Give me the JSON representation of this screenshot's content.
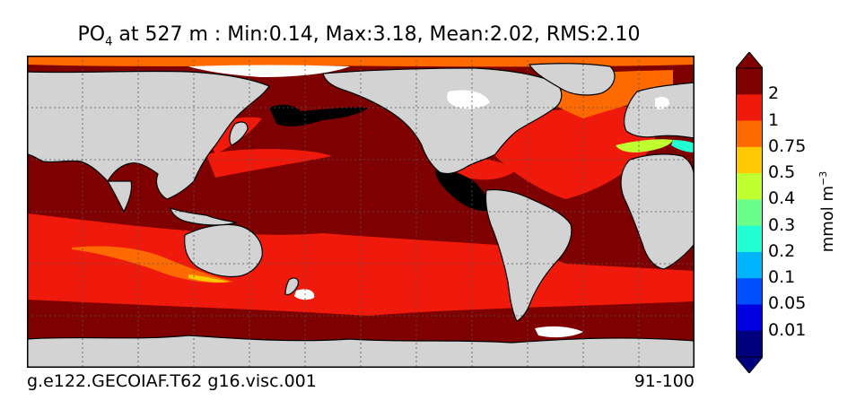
{
  "title": {
    "variable": "PO",
    "variable_subscript": "4",
    "rest": " at 527 m : Min:0.14, Max:3.18, Mean:2.02, RMS:2.10"
  },
  "footer": {
    "case_name": "g.e122.GECOIAF.T62 g16.visc.001",
    "years": "91-100"
  },
  "colorbar": {
    "unit_base": "mmol m",
    "unit_exponent": "−3",
    "ticks": [
      "2",
      "1",
      "0.75",
      "0.5",
      "0.4",
      "0.3",
      "0.2",
      "0.1",
      "0.05",
      "0.01"
    ],
    "colors": [
      "#7f0000",
      "#f01a0c",
      "#ff6a00",
      "#ffc800",
      "#c0ff30",
      "#6bff8a",
      "#22ffd4",
      "#00b4ff",
      "#0050ff",
      "#0000e0",
      "#00007f"
    ]
  },
  "map_colors": {
    "land": "#d3d3d3",
    "no_data": "#ffffff",
    "deep_high": "#7f0000",
    "above_two": "#000000"
  }
}
